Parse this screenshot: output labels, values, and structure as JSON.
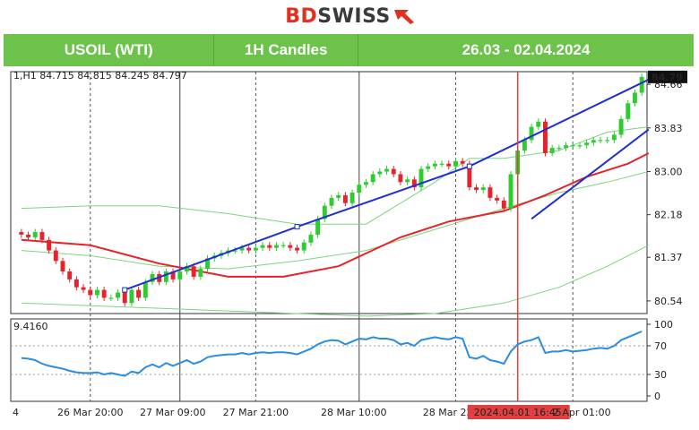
{
  "brand": {
    "name_a": "BD",
    "name_b": "SWISS"
  },
  "header": {
    "instrument": "USOIL (WTI)",
    "timeframe": "1H Candles",
    "date_range": "26.03 - 02.04.2024"
  },
  "colors": {
    "header_bg": "#6cc24a",
    "up": "#2ecc2e",
    "down": "#e8222b",
    "ma": "#e8222b",
    "band": "#7fd37f",
    "trend": "#1f2fd1",
    "rsi": "#2a8de0",
    "marker": "#e04040"
  },
  "chart_data": [
    {
      "type": "candlestick",
      "price_axis": {
        "ticks": [
          84.66,
          83.83,
          83.0,
          82.18,
          81.37,
          80.54
        ],
        "ylim": [
          80.3,
          84.9
        ]
      },
      "last_price_label": "84.79",
      "top_strip": "1,H1 84.715 84.815 84.245 84.797",
      "x_labels": [
        "4",
        "26 Mar 20:00",
        "27 Mar 09:00",
        "27 Mar 21:00",
        "28 Mar 10:00",
        "28 Mar 22:00",
        "2024.04.01 16:45",
        "2 Apr 01:00"
      ],
      "highlight_label": "2024.04.01 16:45",
      "closes": [
        81.8,
        81.75,
        81.85,
        81.7,
        81.5,
        81.3,
        81.1,
        80.95,
        80.8,
        80.75,
        80.65,
        80.75,
        80.6,
        80.6,
        80.7,
        80.5,
        80.75,
        80.6,
        80.9,
        81.05,
        80.9,
        81.1,
        80.95,
        81.1,
        81.2,
        81.0,
        81.15,
        81.35,
        81.4,
        81.45,
        81.5,
        81.5,
        81.55,
        81.5,
        81.55,
        81.6,
        81.55,
        81.6,
        81.6,
        81.55,
        81.5,
        81.65,
        81.8,
        82.1,
        82.35,
        82.5,
        82.55,
        82.4,
        82.6,
        82.75,
        82.8,
        82.95,
        83.0,
        83.05,
        82.95,
        82.8,
        82.85,
        82.7,
        83.05,
        83.1,
        83.15,
        83.15,
        83.1,
        83.2,
        83.15,
        82.7,
        82.65,
        82.7,
        82.5,
        82.45,
        82.3,
        82.95,
        83.4,
        83.6,
        83.85,
        83.95,
        83.35,
        83.45,
        83.45,
        83.5,
        83.5,
        83.5,
        83.55,
        83.6,
        83.6,
        83.6,
        83.7,
        84.0,
        84.3,
        84.5,
        84.8
      ],
      "ma_points": [
        [
          0,
          81.7
        ],
        [
          10,
          81.6
        ],
        [
          20,
          81.25
        ],
        [
          30,
          81.0
        ],
        [
          38,
          81.0
        ],
        [
          46,
          81.2
        ],
        [
          55,
          81.75
        ],
        [
          62,
          82.05
        ],
        [
          70,
          82.25
        ],
        [
          76,
          82.55
        ],
        [
          82,
          82.9
        ],
        [
          88,
          83.15
        ],
        [
          91,
          83.35
        ]
      ],
      "band_upper": [
        [
          0,
          82.3
        ],
        [
          10,
          82.35
        ],
        [
          20,
          82.35
        ],
        [
          30,
          82.2
        ],
        [
          40,
          82.0
        ],
        [
          50,
          82.0
        ],
        [
          60,
          82.8
        ],
        [
          65,
          83.25
        ],
        [
          70,
          83.25
        ],
        [
          78,
          83.4
        ],
        [
          85,
          83.75
        ],
        [
          91,
          83.85
        ]
      ],
      "band_mid": [
        [
          0,
          81.5
        ],
        [
          10,
          81.4
        ],
        [
          20,
          81.2
        ],
        [
          30,
          81.15
        ],
        [
          40,
          81.3
        ],
        [
          50,
          81.5
        ],
        [
          60,
          81.9
        ],
        [
          70,
          82.3
        ],
        [
          78,
          82.6
        ],
        [
          85,
          82.8
        ],
        [
          91,
          83.0
        ]
      ],
      "band_lower": [
        [
          0,
          80.5
        ],
        [
          10,
          80.45
        ],
        [
          20,
          80.4
        ],
        [
          30,
          80.35
        ],
        [
          40,
          80.3
        ],
        [
          50,
          80.25
        ],
        [
          60,
          80.3
        ],
        [
          70,
          80.5
        ],
        [
          78,
          80.8
        ],
        [
          85,
          81.2
        ],
        [
          91,
          81.6
        ]
      ],
      "trendline_upper": [
        [
          15,
          80.75
        ],
        [
          40,
          81.95
        ],
        [
          65,
          83.1
        ],
        [
          91,
          84.75
        ]
      ],
      "trendline_lower": [
        [
          74,
          82.1
        ],
        [
          91,
          83.8
        ]
      ],
      "vlines_dashed": [
        10,
        34,
        63,
        80
      ],
      "vlines_solid": [
        23,
        49
      ],
      "marker_index": 72
    },
    {
      "type": "line",
      "name": "RSI",
      "label": "9.4160",
      "y_ticks": [
        100,
        70,
        30,
        0
      ],
      "ylim": [
        0,
        100
      ],
      "values": [
        53,
        52,
        50,
        45,
        42,
        40,
        38,
        35,
        33,
        32,
        32,
        33,
        30,
        32,
        30,
        28,
        34,
        32,
        40,
        44,
        40,
        46,
        42,
        46,
        50,
        45,
        48,
        54,
        56,
        57,
        58,
        58,
        60,
        58,
        60,
        61,
        60,
        61,
        61,
        60,
        58,
        62,
        66,
        72,
        76,
        78,
        77,
        72,
        76,
        80,
        79,
        82,
        80,
        80,
        78,
        72,
        74,
        70,
        78,
        80,
        82,
        80,
        79,
        82,
        80,
        54,
        52,
        56,
        50,
        48,
        45,
        62,
        72,
        76,
        78,
        82,
        60,
        62,
        62,
        64,
        62,
        63,
        64,
        66,
        67,
        66,
        70,
        78,
        82,
        86,
        90
      ]
    }
  ]
}
